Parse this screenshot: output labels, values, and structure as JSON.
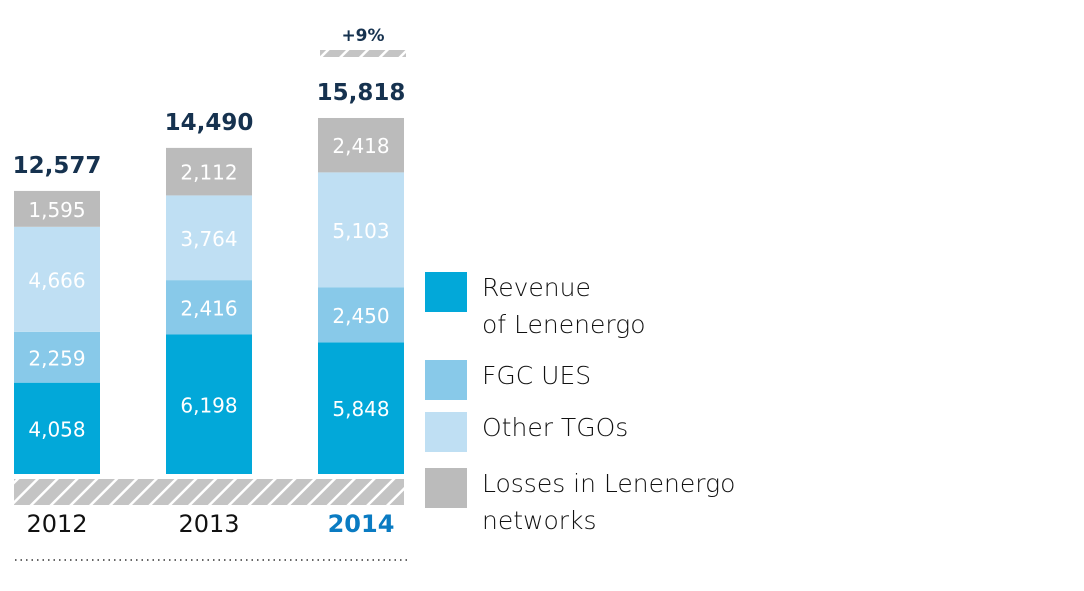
{
  "chart_data": {
    "type": "bar",
    "stacked": true,
    "categories": [
      "2012",
      "2013",
      "2014"
    ],
    "highlight_category": "2014",
    "series": [
      {
        "name": "Revenue of Lenenergo",
        "legend_lines": [
          "Revenue",
          "of Lenenergo"
        ],
        "color": "#02a8d9",
        "values": [
          4058,
          6198,
          5848
        ]
      },
      {
        "name": "FGC UES",
        "legend_lines": [
          "FGC UES"
        ],
        "color": "#88c9e9",
        "values": [
          2259,
          2416,
          2450
        ]
      },
      {
        "name": "Other TGOs",
        "legend_lines": [
          "Other TGOs"
        ],
        "color": "#bfdff3",
        "values": [
          4666,
          3764,
          5103
        ]
      },
      {
        "name": "Losses in Lenenergo networks",
        "legend_lines": [
          "Losses in Lenenergo",
          "networks"
        ],
        "color": "#bbbbbb",
        "values": [
          1595,
          2112,
          2418
        ]
      }
    ],
    "value_labels": [
      [
        "4,058",
        "6,198",
        "5,848"
      ],
      [
        "2,259",
        "2,416",
        "2,450"
      ],
      [
        "4,666",
        "3,764",
        "5,103"
      ],
      [
        "1,595",
        "2,112",
        "2,418"
      ]
    ],
    "totals": [
      "12,577",
      "14,490",
      "15,818"
    ],
    "total_values": [
      12577,
      14490,
      15818
    ],
    "growth_annotation": "+9%",
    "legend_position": "right",
    "grid": false,
    "ylim": [
      0,
      15818
    ]
  }
}
